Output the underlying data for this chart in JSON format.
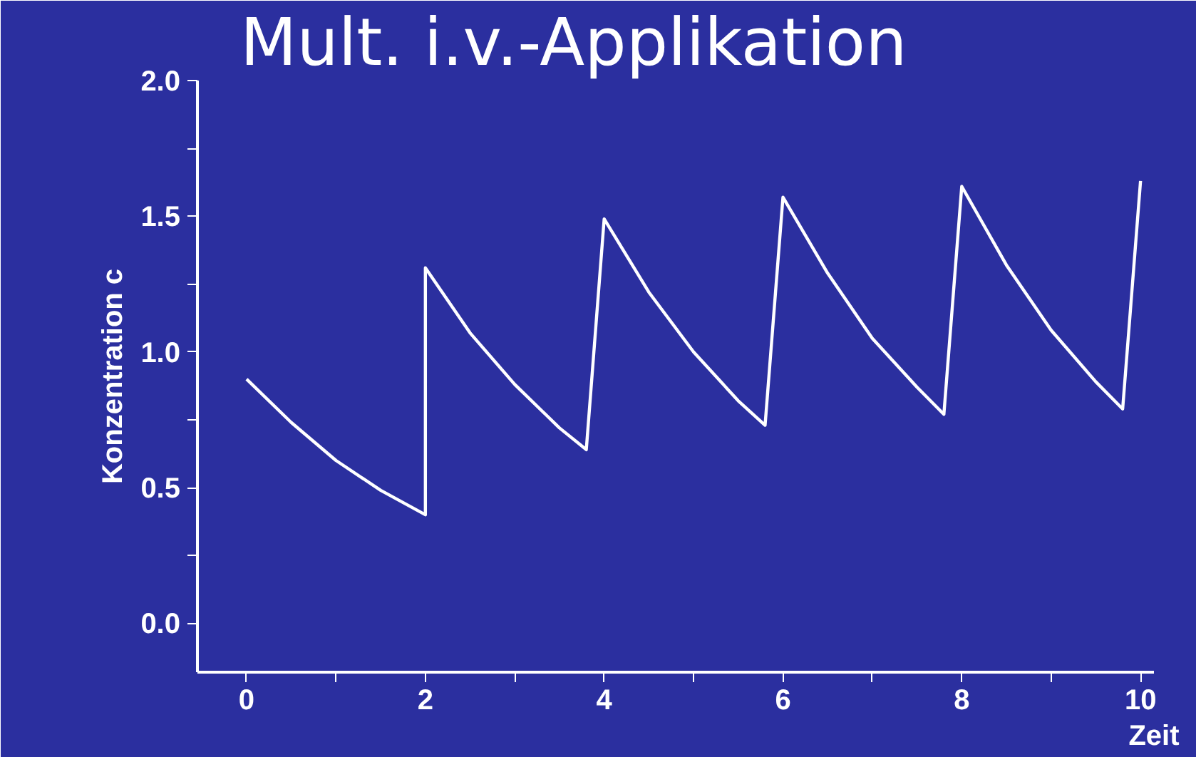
{
  "chart_data": {
    "type": "line",
    "title": "Mult. i.v.-Applikation",
    "xlabel": "Zeit",
    "ylabel": "Konzentration c",
    "x": [
      0,
      0.5,
      1,
      1.5,
      2,
      2,
      2.5,
      3,
      3.5,
      3.8,
      4,
      4.5,
      5,
      5.5,
      5.8,
      6,
      6.5,
      7,
      7.5,
      7.8,
      8,
      8.5,
      9,
      9.5,
      9.8,
      10
    ],
    "series": [
      {
        "color": "#ffffff",
        "values": [
          0.9,
          0.74,
          0.6,
          0.49,
          0.4,
          1.31,
          1.07,
          0.88,
          0.72,
          0.64,
          1.49,
          1.22,
          1.0,
          0.82,
          0.73,
          1.57,
          1.29,
          1.05,
          0.87,
          0.77,
          1.61,
          1.32,
          1.08,
          0.89,
          0.79,
          1.63
        ]
      }
    ],
    "xlim": [
      -0.55,
      10.15
    ],
    "ylim": [
      -0.18,
      2.0
    ],
    "xticks": [
      0,
      {
        "value": 1,
        "label": null
      },
      2,
      {
        "value": 3,
        "label": null
      },
      4,
      {
        "value": 5,
        "label": null
      },
      6,
      {
        "value": 7,
        "label": null
      },
      8,
      {
        "value": 9,
        "label": null
      },
      10
    ],
    "yticks": [
      {
        "value": 0,
        "label": "0.0"
      },
      {
        "value": 0.25,
        "label": null
      },
      {
        "value": 0.5,
        "label": "0.5"
      },
      {
        "value": 0.75,
        "label": null
      },
      {
        "value": 1,
        "label": "1.0"
      },
      {
        "value": 1.25,
        "label": null
      },
      {
        "value": 1.5,
        "label": "1.5"
      },
      {
        "value": 1.75,
        "label": null
      },
      {
        "value": 2,
        "label": "2.0"
      }
    ],
    "grid": false,
    "marker": "none",
    "line_style": "solid"
  }
}
